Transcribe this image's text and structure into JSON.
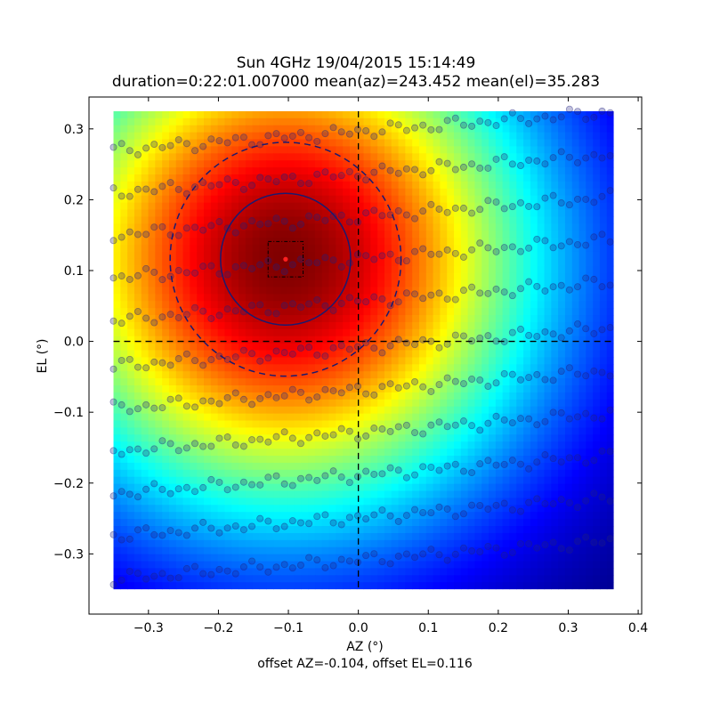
{
  "chart_data": {
    "type": "heatmap",
    "title": "Sun 4GHz 19/04/2015 15:14:49",
    "subtitle": "duration=0:22:01.007000 mean(az)=243.452 mean(el)=35.283",
    "xlabel": "AZ (°)",
    "ylabel": "EL (°)",
    "footer": "offset AZ=-0.104, offset EL=0.116",
    "xlim": [
      -0.385,
      0.405
    ],
    "ylim": [
      -0.385,
      0.345
    ],
    "x_ticks": [
      "−0.3",
      "−0.2",
      "−0.1",
      "0.0",
      "0.1",
      "0.2",
      "0.3",
      "0.4"
    ],
    "x_tick_values": [
      -0.3,
      -0.2,
      -0.1,
      0.0,
      0.1,
      0.2,
      0.3,
      0.4
    ],
    "y_ticks": [
      "0.3",
      "0.2",
      "0.1",
      "0.0",
      "−0.1",
      "−0.2",
      "−0.3"
    ],
    "y_tick_values": [
      0.3,
      0.2,
      0.1,
      0.0,
      -0.1,
      -0.2,
      -0.3
    ],
    "heatmap_extent": {
      "x": [
        -0.35,
        0.365
      ],
      "y": [
        -0.35,
        0.325
      ]
    },
    "colormap": "jet",
    "peak": {
      "az": -0.104,
      "el": 0.116
    },
    "half_power_circle_radius": 0.093,
    "outer_dashed_circle_radius": 0.165,
    "center_box_half_width": 0.025,
    "crosshair": {
      "az": 0.0,
      "el": 0.0
    },
    "scan": {
      "x_start": -0.35,
      "x_end": 0.36,
      "rows": [
        {
          "el": 0.295,
          "slope": 0.075
        },
        {
          "el": 0.235,
          "slope": 0.075
        },
        {
          "el": 0.175,
          "slope": 0.075
        },
        {
          "el": 0.115,
          "slope": 0.075
        },
        {
          "el": 0.055,
          "slope": 0.075
        },
        {
          "el": -0.01,
          "slope": 0.075
        },
        {
          "el": -0.07,
          "slope": 0.075
        },
        {
          "el": -0.13,
          "slope": 0.075
        },
        {
          "el": -0.19,
          "slope": 0.075
        },
        {
          "el": -0.25,
          "slope": 0.075
        },
        {
          "el": -0.31,
          "slope": 0.075
        }
      ]
    },
    "point_color": "#202080"
  }
}
